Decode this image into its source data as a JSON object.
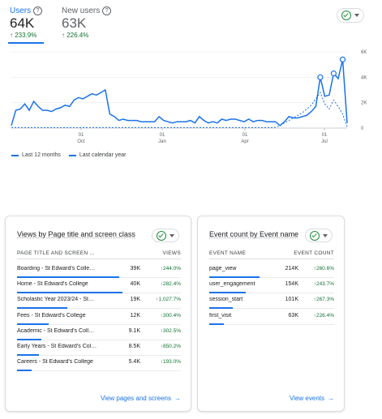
{
  "metrics": {
    "users": {
      "label": "Users",
      "value": "64K",
      "delta": "233.9%"
    },
    "new_users": {
      "label": "New users",
      "value": "63K",
      "delta": "226.4%"
    }
  },
  "chart_data": {
    "type": "line",
    "y_ticks": [
      "6K",
      "4K",
      "2K",
      "0"
    ],
    "ylim": [
      0,
      6000
    ],
    "x_ticks": [
      {
        "day": "01",
        "month": "Oct"
      },
      {
        "day": "01",
        "month": "Jan"
      },
      {
        "day": "01",
        "month": "Apr"
      },
      {
        "day": "01",
        "month": "Jul"
      }
    ],
    "series": [
      {
        "name": "Last 12 months",
        "style": "solid",
        "color": "#1a73e8",
        "values": [
          200,
          1400,
          1500,
          1900,
          1400,
          2100,
          1700,
          1400,
          1400,
          1300,
          1500,
          1600,
          1800,
          1700,
          2200,
          2400,
          2300,
          2500,
          2700,
          2600,
          2800,
          3000,
          1100,
          900,
          600,
          700,
          600,
          600,
          600,
          500,
          500,
          500,
          500,
          900,
          600,
          500,
          400,
          500,
          500,
          500,
          600,
          400,
          900,
          600,
          400,
          500,
          400,
          700,
          600,
          700,
          700,
          600,
          500,
          700,
          500,
          600,
          600,
          500,
          500,
          500,
          200,
          500,
          900,
          800,
          800,
          900,
          1000,
          1300,
          1700,
          4000,
          2500,
          2600,
          4300,
          3900,
          5400,
          400
        ],
        "markers": [
          69,
          72,
          74
        ]
      },
      {
        "name": "Last calendar year",
        "style": "dashed",
        "color": "#1a73e8",
        "values": [
          50,
          40,
          40,
          40,
          40,
          40,
          40,
          40,
          40,
          40,
          40,
          40,
          40,
          40,
          40,
          40,
          40,
          40,
          40,
          40,
          40,
          40,
          40,
          40,
          40,
          40,
          40,
          40,
          40,
          40,
          40,
          40,
          40,
          40,
          40,
          40,
          40,
          40,
          40,
          40,
          40,
          40,
          40,
          40,
          40,
          40,
          40,
          40,
          40,
          40,
          40,
          40,
          40,
          40,
          40,
          40,
          40,
          40,
          40,
          50,
          200,
          400,
          600,
          800,
          1000,
          1200,
          1500,
          1800,
          2300,
          2800,
          1900,
          1500,
          2200,
          1700,
          1100,
          100
        ]
      }
    ]
  },
  "legend": [
    "Last 12 months",
    "Last calendar year"
  ],
  "card1": {
    "title": "Views by Page title and screen class",
    "col_name": "PAGE TITLE AND SCREEN …",
    "col_metric": "VIEWS",
    "rows": [
      {
        "name": "Boarding - St Edward's Colle…",
        "value": "39K",
        "delta": "244.0%",
        "share": 0.97
      },
      {
        "name": "Home - St Edward's College",
        "value": "40K",
        "delta": "282.4%",
        "share": 1.0
      },
      {
        "name": "Scholastic Year 2023/24 - St…",
        "value": "19K",
        "delta": "1,027.7%",
        "share": 0.48
      },
      {
        "name": "Fees - St Edward's College",
        "value": "12K",
        "delta": "300.4%",
        "share": 0.3
      },
      {
        "name": "Academic - St Edward's Coll…",
        "value": "9.1K",
        "delta": "302.5%",
        "share": 0.23
      },
      {
        "name": "Early Years - St Edward's Col…",
        "value": "8.5K",
        "delta": "850.2%",
        "share": 0.21
      },
      {
        "name": "Careers - St Edward's College",
        "value": "5.4K",
        "delta": "193.0%",
        "share": 0.14
      }
    ],
    "link": "View pages and screens"
  },
  "card2": {
    "title": "Event count by Event name",
    "col_name": "EVENT NAME",
    "col_metric": "EVENT COUNT",
    "rows": [
      {
        "name": "page_view",
        "value": "214K",
        "delta": "260.6%",
        "share": 1.0
      },
      {
        "name": "user_engagement",
        "value": "154K",
        "delta": "243.7%",
        "share": 0.72
      },
      {
        "name": "session_start",
        "value": "101K",
        "delta": "267.3%",
        "share": 0.47
      },
      {
        "name": "first_visit",
        "value": "63K",
        "delta": "226.4%",
        "share": 0.29
      }
    ],
    "link": "View events"
  }
}
